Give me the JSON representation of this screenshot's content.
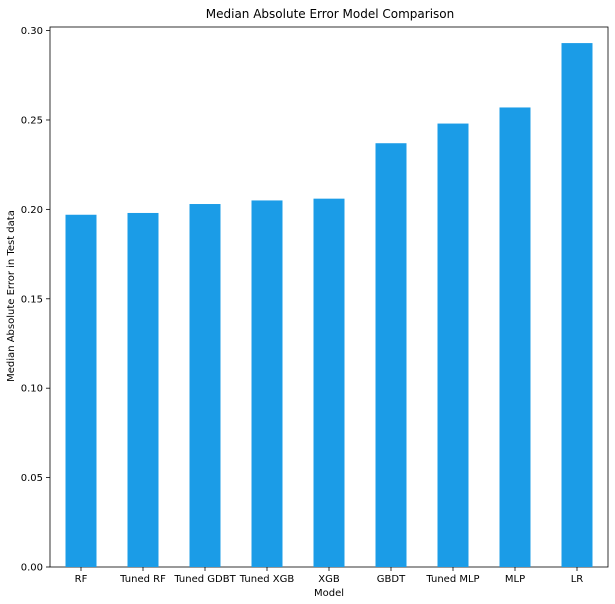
{
  "chart_data": {
    "type": "bar",
    "title": "Median Absolute Error Model Comparison",
    "xlabel": "Model",
    "ylabel": "Median Absolute Error in Test data",
    "categories": [
      "RF",
      "Tuned RF",
      "Tuned GDBT",
      "Tuned XGB",
      "XGB",
      "GBDT",
      "Tuned MLP",
      "MLP",
      "LR"
    ],
    "values": [
      0.197,
      0.198,
      0.203,
      0.205,
      0.206,
      0.237,
      0.248,
      0.257,
      0.293
    ],
    "ylim": [
      0,
      0.302
    ],
    "yticks": [
      "0.00",
      "0.05",
      "0.10",
      "0.15",
      "0.20",
      "0.25",
      "0.30"
    ],
    "bar_color": "#1b9ce7",
    "grid": false,
    "legend": "none"
  }
}
